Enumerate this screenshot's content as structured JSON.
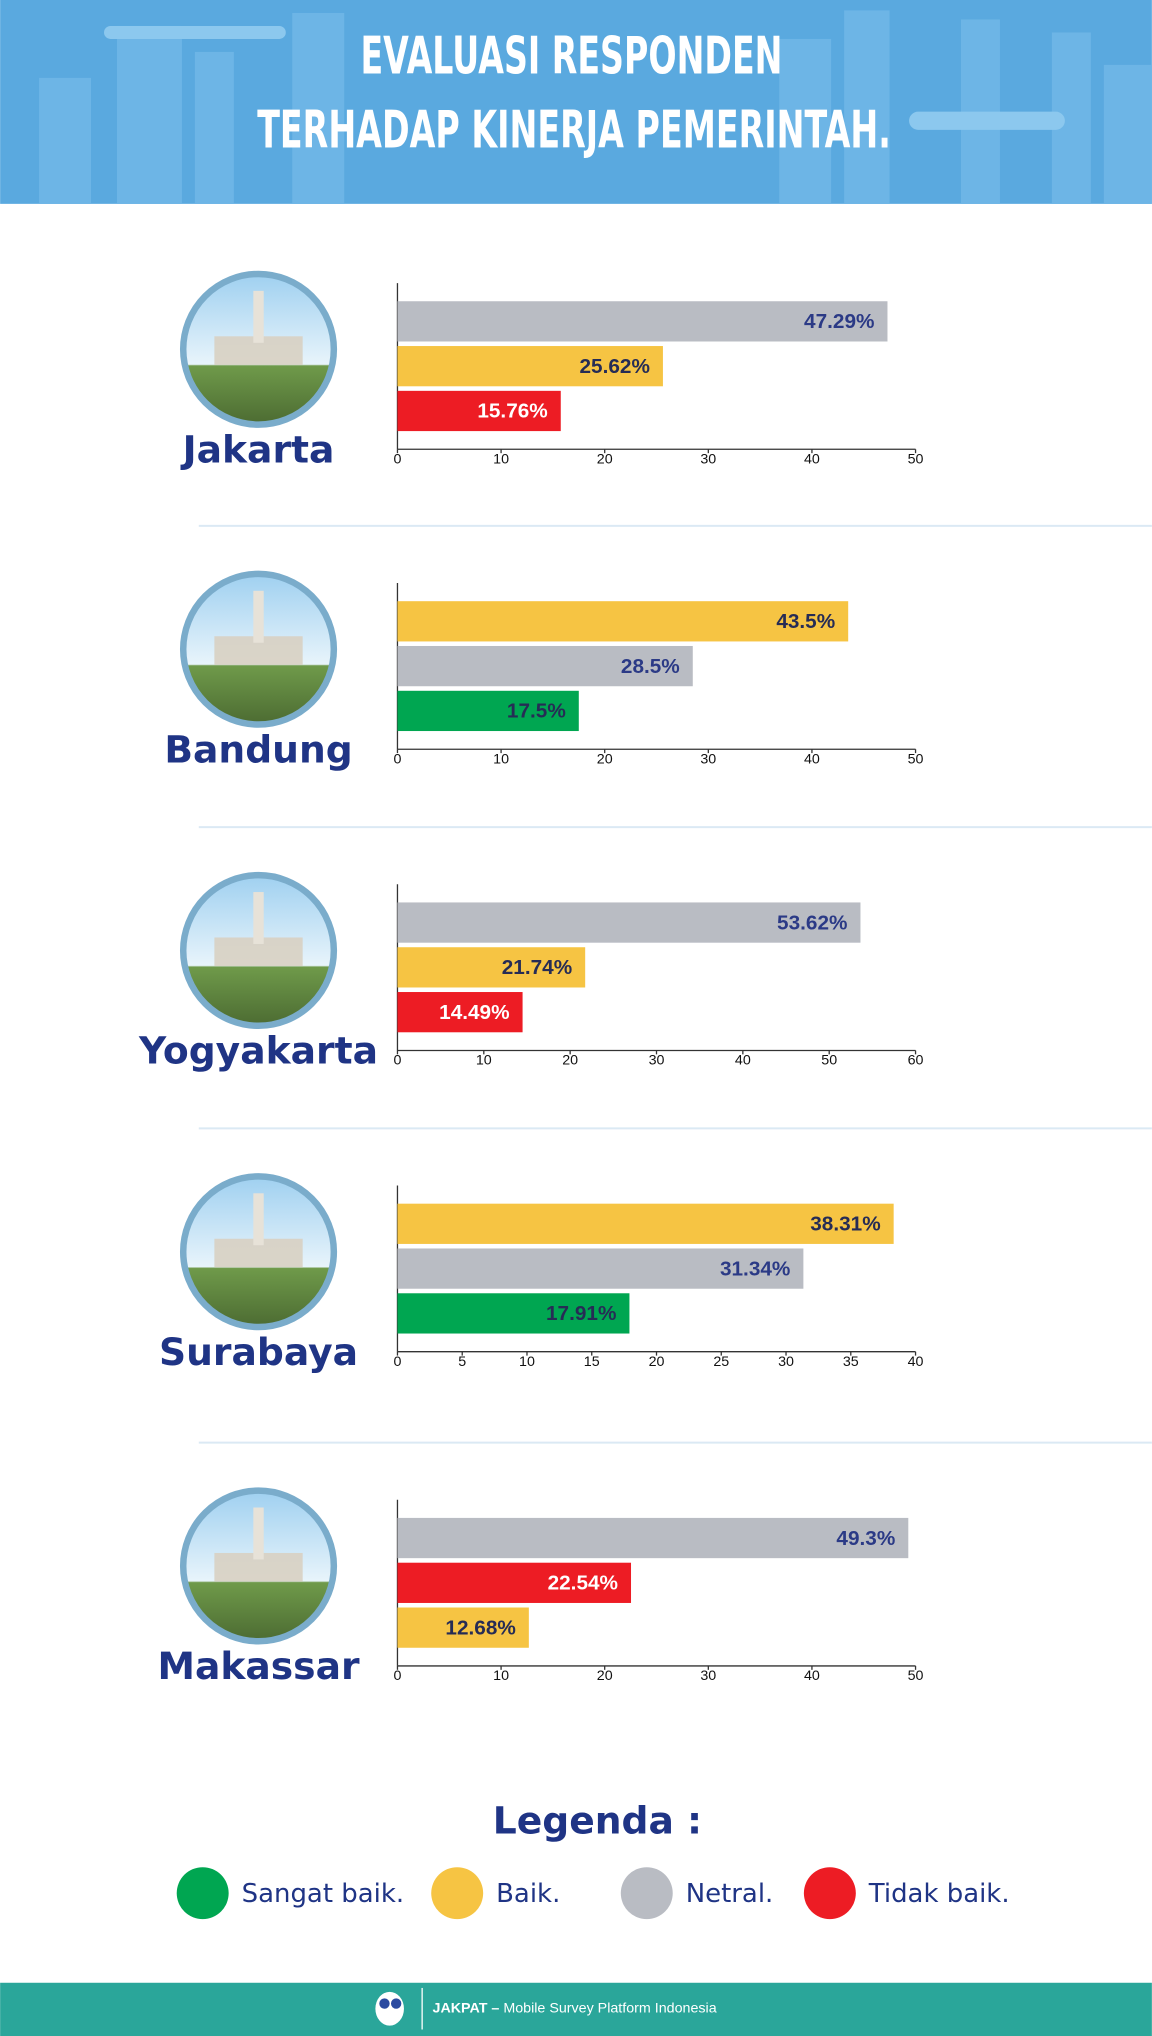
{
  "header": {
    "title_lines": [
      "EVALUASI RESPONDEN",
      "TERHADAP KINERJA PEMERINTAH."
    ]
  },
  "chart_data": [
    {
      "type": "bar",
      "orientation": "horizontal",
      "title": "Jakarta",
      "values": [
        47.29,
        25.62,
        15.76
      ],
      "value_labels": [
        "47.29%",
        "25.62%",
        "15.76%"
      ],
      "colors": [
        "#b9bcc3",
        "#f6c443",
        "#ed1c24"
      ],
      "xlim": [
        0,
        50
      ],
      "xticks": [
        0,
        10,
        20,
        30,
        40,
        50
      ]
    },
    {
      "type": "bar",
      "orientation": "horizontal",
      "title": "Bandung",
      "values": [
        43.5,
        28.5,
        17.5
      ],
      "value_labels": [
        "43.5%",
        "28.5%",
        "17.5%"
      ],
      "colors": [
        "#f6c443",
        "#b9bcc3",
        "#00a651"
      ],
      "xlim": [
        0,
        50
      ],
      "xticks": [
        0,
        10,
        20,
        30,
        40,
        50
      ]
    },
    {
      "type": "bar",
      "orientation": "horizontal",
      "title": "Yogyakarta",
      "values": [
        53.62,
        21.74,
        14.49
      ],
      "value_labels": [
        "53.62%",
        "21.74%",
        "14.49%"
      ],
      "colors": [
        "#b9bcc3",
        "#f6c443",
        "#ed1c24"
      ],
      "xlim": [
        0,
        60
      ],
      "xticks": [
        0,
        10,
        20,
        30,
        40,
        50,
        60
      ]
    },
    {
      "type": "bar",
      "orientation": "horizontal",
      "title": "Surabaya",
      "values": [
        38.31,
        31.34,
        17.91
      ],
      "value_labels": [
        "38.31%",
        "31.34%",
        "17.91%"
      ],
      "colors": [
        "#f6c443",
        "#b9bcc3",
        "#00a651"
      ],
      "xlim": [
        0,
        40
      ],
      "xticks": [
        0,
        5,
        10,
        15,
        20,
        25,
        30,
        35,
        40
      ]
    },
    {
      "type": "bar",
      "orientation": "horizontal",
      "title": "Makassar",
      "values": [
        49.3,
        22.54,
        12.68
      ],
      "value_labels": [
        "49.3%",
        "22.54%",
        "12.68%"
      ],
      "colors": [
        "#b9bcc3",
        "#ed1c24",
        "#f6c443"
      ],
      "xlim": [
        0,
        50
      ],
      "xticks": [
        0,
        10,
        20,
        30,
        40,
        50
      ]
    }
  ],
  "legend": {
    "title": "Legenda :",
    "items": [
      {
        "name": "Sangat baik.",
        "color": "#00a651"
      },
      {
        "name": "Baik.",
        "color": "#f6c443"
      },
      {
        "name": "Netral.",
        "color": "#b9bcc3"
      },
      {
        "name": "Tidak baik.",
        "color": "#ed1c24"
      }
    ]
  },
  "footer": {
    "brand": "JAKPAT –",
    "tagline": "Mobile Survey Platform Indonesia"
  }
}
